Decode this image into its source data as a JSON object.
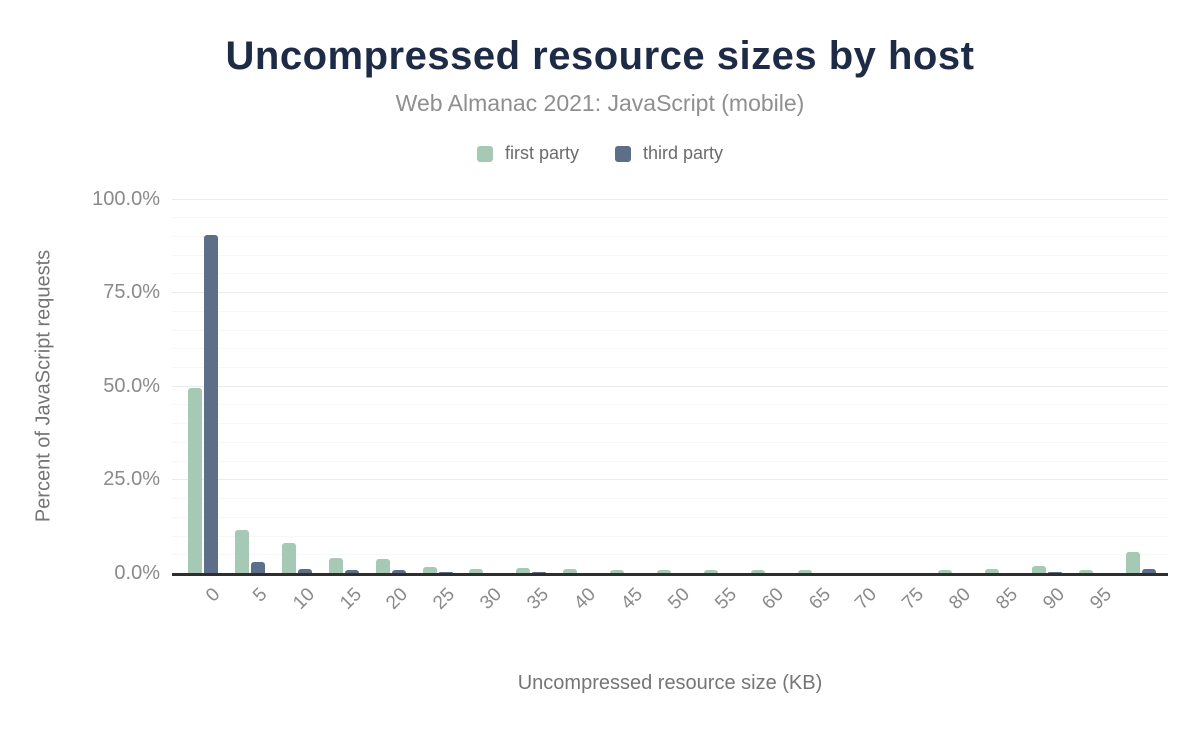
{
  "page": {
    "background": "#ffffff"
  },
  "colors": {
    "title": "#1e2b47",
    "subtitle": "#8f8f8f",
    "axis_text": "#8a8a8a",
    "axis_title_text": "#757575",
    "axis_line": "#2e2e2e",
    "grid_major": "#ebebeb",
    "grid_minor": "#f7f7f7",
    "first_party": "#a6c9b5",
    "third_party": "#5d6e88"
  },
  "chart_data": {
    "type": "bar",
    "title": "Uncompressed resource sizes by host",
    "subtitle": "Web Almanac 2021: JavaScript (mobile)",
    "xlabel": "Uncompressed resource size (KB)",
    "ylabel": "Percent of JavaScript requests",
    "categories": [
      "0",
      "5",
      "10",
      "15",
      "20",
      "25",
      "30",
      "35",
      "40",
      "45",
      "50",
      "55",
      "60",
      "65",
      "70",
      "75",
      "80",
      "85",
      "90",
      "95",
      ""
    ],
    "series": [
      {
        "name": "first party",
        "color": "#a6c9b5",
        "values": [
          49.4,
          11.6,
          7.9,
          3.9,
          3.8,
          1.5,
          1.0,
          1.3,
          1.1,
          0.7,
          0.8,
          0.8,
          0.7,
          0.7,
          0.1,
          0.1,
          0.7,
          1.0,
          2.0,
          0.7,
          5.7
        ]
      },
      {
        "name": "third party",
        "color": "#5d6e88",
        "values": [
          90.3,
          3.0,
          1.0,
          0.9,
          0.8,
          0.2,
          0.1,
          0.2,
          0.1,
          0.1,
          0.1,
          0.1,
          0.1,
          0.1,
          0.0,
          0.0,
          0.1,
          0.1,
          0.2,
          0.1,
          1.2
        ]
      }
    ],
    "ylim": [
      0,
      100
    ],
    "ytick_values": [
      0,
      25,
      50,
      75,
      100
    ],
    "ytick_labels": [
      "0.0%",
      "25.0%",
      "50.0%",
      "75.0%",
      "100.0%"
    ],
    "grid": "horizontal; minor every 5%, major every 25%",
    "legend_position": "top"
  }
}
